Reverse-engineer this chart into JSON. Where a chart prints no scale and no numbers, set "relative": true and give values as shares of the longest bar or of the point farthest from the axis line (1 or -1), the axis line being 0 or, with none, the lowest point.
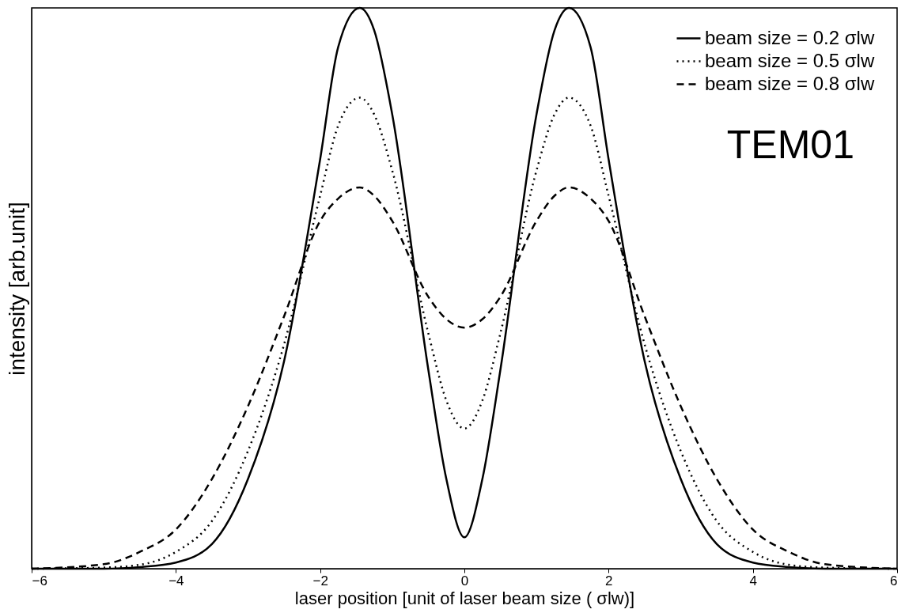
{
  "chart_data": {
    "type": "line",
    "relative": true,
    "xlabel": "laser position [unit of laser beam size ( σlw)]",
    "ylabel": "intensity [arb.unit]",
    "xlim": [
      -6,
      6
    ],
    "xticks": [
      -6,
      -4,
      -2,
      0,
      2,
      4,
      6
    ],
    "grid": false,
    "legend": "top right",
    "marker": "none",
    "annotations": [
      "TEM01"
    ],
    "x": [
      -6,
      -5,
      -4.5,
      -4,
      -3.5,
      -3,
      -2.5,
      -2,
      -1.75,
      -1.45,
      -1.25,
      -1,
      -0.5,
      -0.25,
      0,
      0.25,
      0.5,
      1,
      1.25,
      1.45,
      1.75,
      2,
      2.5,
      3,
      3.5,
      4,
      4.5,
      5,
      6
    ],
    "series": [
      {
        "name": "beam size = 0.2  σlw",
        "color": "#000000",
        "line_style": "solid",
        "values": [
          0,
          0,
          0.003,
          0.011,
          0.044,
          0.16,
          0.37,
          0.73,
          0.93,
          1,
          0.96,
          0.81,
          0.355,
          0.16,
          0.056,
          0.16,
          0.355,
          0.81,
          0.96,
          1,
          0.93,
          0.73,
          0.37,
          0.16,
          0.044,
          0.011,
          0.003,
          0,
          0
        ]
      },
      {
        "name": "beam size = 0.5  σlw",
        "color": "#000000",
        "line_style": "dotted",
        "values": [
          0,
          0.002,
          0.007,
          0.03,
          0.085,
          0.21,
          0.4,
          0.665,
          0.79,
          0.84,
          0.81,
          0.71,
          0.42,
          0.3,
          0.25,
          0.3,
          0.42,
          0.71,
          0.81,
          0.84,
          0.79,
          0.665,
          0.4,
          0.21,
          0.085,
          0.03,
          0.007,
          0.002,
          0
        ]
      },
      {
        "name": "beam size = 0.8  σlw",
        "color": "#000000",
        "line_style": "dashed",
        "values": [
          0,
          0.008,
          0.03,
          0.07,
          0.16,
          0.29,
          0.45,
          0.62,
          0.66,
          0.68,
          0.665,
          0.62,
          0.485,
          0.445,
          0.43,
          0.445,
          0.485,
          0.62,
          0.665,
          0.68,
          0.66,
          0.62,
          0.45,
          0.29,
          0.16,
          0.07,
          0.03,
          0.008,
          0
        ]
      }
    ]
  }
}
